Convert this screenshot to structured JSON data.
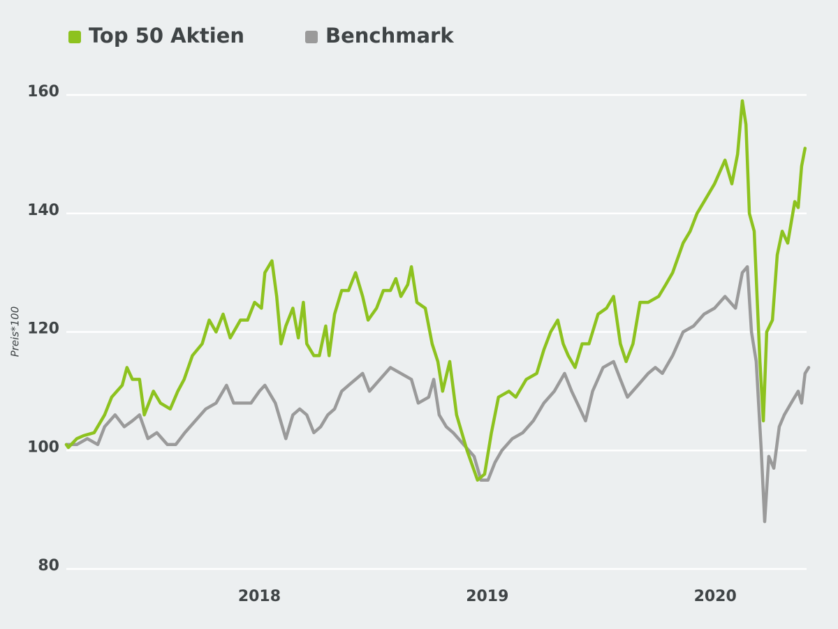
{
  "chart_data": {
    "type": "line",
    "y_label": "Preis*100",
    "legend": "top-left",
    "grid": true,
    "xlim": [
      2017.153,
      2020.41
    ],
    "xticks": [
      2018,
      2019,
      2020
    ],
    "ylim": [
      80,
      160
    ],
    "yticks": [
      80,
      100,
      120,
      140,
      160
    ],
    "series": [
      {
        "name": "Top 50 Aktien",
        "color": "#8dc21f",
        "x": [
          2017.153,
          2017.162,
          2017.199,
          2017.229,
          2017.275,
          2017.321,
          2017.352,
          2017.398,
          2017.419,
          2017.443,
          2017.474,
          2017.495,
          2017.535,
          2017.566,
          2017.609,
          2017.642,
          2017.67,
          2017.706,
          2017.749,
          2017.78,
          2017.81,
          2017.841,
          2017.872,
          2017.917,
          2017.948,
          2017.979,
          2018.009,
          2018.024,
          2018.055,
          2018.076,
          2018.095,
          2018.116,
          2018.147,
          2018.171,
          2018.193,
          2018.208,
          2018.239,
          2018.263,
          2018.291,
          2018.306,
          2018.33,
          2018.361,
          2018.391,
          2018.422,
          2018.453,
          2018.477,
          2018.514,
          2018.544,
          2018.575,
          2018.599,
          2018.621,
          2018.651,
          2018.667,
          2018.691,
          2018.728,
          2018.758,
          2018.783,
          2018.804,
          2018.835,
          2018.865,
          2018.911,
          2018.957,
          2018.988,
          2019.018,
          2019.049,
          2019.095,
          2019.125,
          2019.171,
          2019.217,
          2019.248,
          2019.278,
          2019.309,
          2019.333,
          2019.355,
          2019.385,
          2019.416,
          2019.446,
          2019.486,
          2019.523,
          2019.554,
          2019.584,
          2019.609,
          2019.639,
          2019.67,
          2019.706,
          2019.752,
          2019.783,
          2019.813,
          2019.859,
          2019.89,
          2019.92,
          2019.951,
          2019.997,
          2020.043,
          2020.073,
          2020.098,
          2020.119,
          2020.135,
          2020.15,
          2020.171,
          2020.196,
          2020.211,
          2020.226,
          2020.251,
          2020.272,
          2020.294,
          2020.318,
          2020.349,
          2020.364,
          2020.379,
          2020.394
        ],
        "values": [
          101,
          100.5,
          102,
          102.5,
          103,
          106,
          109,
          111,
          114,
          112,
          112,
          106,
          110,
          108,
          107,
          110,
          112,
          116,
          118,
          122,
          120,
          123,
          119,
          122,
          122,
          125,
          124,
          130,
          132,
          126,
          118,
          121,
          124,
          119,
          125,
          118,
          116,
          116,
          121,
          116,
          123,
          127,
          127,
          130,
          126,
          122,
          124,
          127,
          127,
          129,
          126,
          128,
          131,
          125,
          124,
          118,
          115,
          110,
          115,
          106,
          100,
          95,
          96,
          103,
          109,
          110,
          109,
          112,
          113,
          117,
          120,
          122,
          118,
          116,
          114,
          118,
          118,
          123,
          124,
          126,
          118,
          115,
          118,
          125,
          125,
          126,
          128,
          130,
          135,
          137,
          140,
          142,
          145,
          149,
          145,
          150,
          159,
          155,
          140,
          137,
          115,
          105,
          120,
          122,
          133,
          137,
          135,
          142,
          141,
          148,
          151
        ]
      },
      {
        "name": "Benchmark",
        "color": "#9a9a9a",
        "x": [
          2017.153,
          2017.199,
          2017.245,
          2017.291,
          2017.321,
          2017.367,
          2017.407,
          2017.443,
          2017.474,
          2017.511,
          2017.55,
          2017.596,
          2017.633,
          2017.673,
          2017.719,
          2017.765,
          2017.81,
          2017.856,
          2017.887,
          2017.917,
          2017.963,
          2018.0,
          2018.024,
          2018.07,
          2018.116,
          2018.147,
          2018.177,
          2018.208,
          2018.239,
          2018.269,
          2018.3,
          2018.33,
          2018.361,
          2018.391,
          2018.422,
          2018.453,
          2018.483,
          2018.529,
          2018.575,
          2018.621,
          2018.667,
          2018.697,
          2018.743,
          2018.765,
          2018.789,
          2018.82,
          2018.85,
          2018.896,
          2018.942,
          2018.972,
          2019.003,
          2019.034,
          2019.064,
          2019.11,
          2019.156,
          2019.202,
          2019.248,
          2019.294,
          2019.339,
          2019.37,
          2019.407,
          2019.431,
          2019.462,
          2019.508,
          2019.554,
          2019.584,
          2019.615,
          2019.661,
          2019.706,
          2019.737,
          2019.768,
          2019.813,
          2019.859,
          2019.905,
          2019.951,
          2019.997,
          2020.043,
          2020.089,
          2020.119,
          2020.141,
          2020.159,
          2020.18,
          2020.202,
          2020.217,
          2020.235,
          2020.257,
          2020.281,
          2020.303,
          2020.333,
          2020.364,
          2020.379,
          2020.394,
          2020.41
        ],
        "values": [
          101,
          101,
          102,
          101,
          104,
          106,
          104,
          105,
          106,
          102,
          103,
          101,
          101,
          103,
          105,
          107,
          108,
          111,
          108,
          108,
          108,
          110,
          111,
          108,
          102,
          106,
          107,
          106,
          103,
          104,
          106,
          107,
          110,
          111,
          112,
          113,
          110,
          112,
          114,
          113,
          112,
          108,
          109,
          112,
          106,
          104,
          103,
          101,
          99,
          95,
          95,
          98,
          100,
          102,
          103,
          105,
          108,
          110,
          113,
          110,
          107,
          105,
          110,
          114,
          115,
          112,
          109,
          111,
          113,
          114,
          113,
          116,
          120,
          121,
          123,
          124,
          126,
          124,
          130,
          131,
          120,
          115,
          100,
          88,
          99,
          97,
          104,
          106,
          108,
          110,
          108,
          113,
          114
        ]
      }
    ]
  }
}
